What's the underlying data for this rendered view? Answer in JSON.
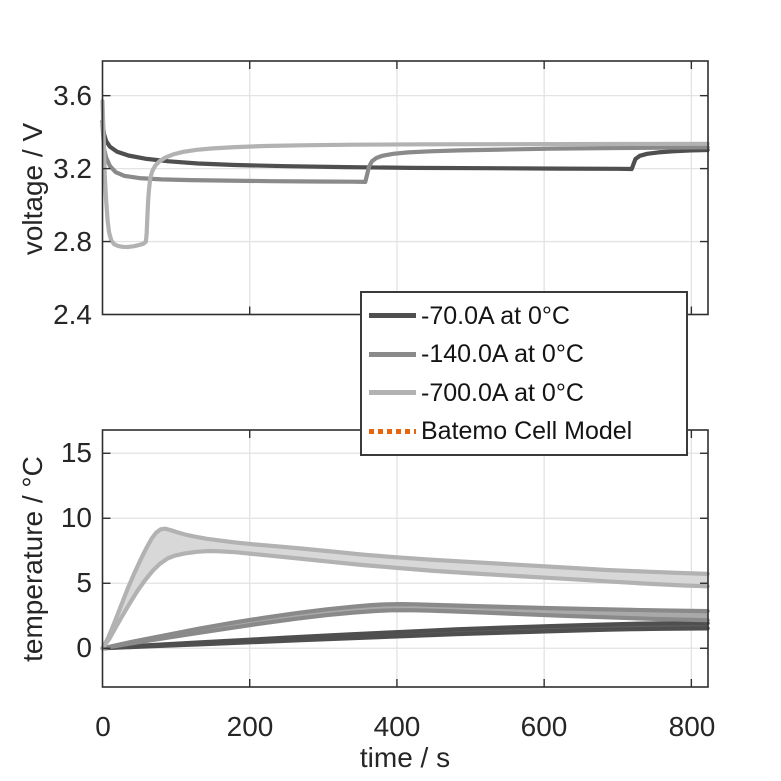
{
  "figure": {
    "background": "#ffffff"
  },
  "colors": {
    "dark": "#4f4f4f",
    "medium": "#8a8a8a",
    "light": "#b2b2b2",
    "dark_fill": "#5f5f5f",
    "medium_fill": "#a9a9a9",
    "light_fill": "#d8d8d8",
    "orange": "#e8650f",
    "grid": "#e3e3e3",
    "axis": "#2f2f2f"
  },
  "legend": {
    "items": [
      {
        "label": "-70.0A at 0°C",
        "swatch": "solid-dark"
      },
      {
        "label": "-140.0A at 0°C",
        "swatch": "solid-medium"
      },
      {
        "label": "-700.0A at 0°C",
        "swatch": "solid-light"
      },
      {
        "label": "Batemo Cell Model",
        "swatch": "dotted-orange"
      }
    ]
  },
  "chart_data": [
    {
      "type": "line",
      "title": "",
      "xlabel": "",
      "ylabel": "voltage / V",
      "xlim": [
        0,
        822.6
      ],
      "ylim": [
        2.4,
        3.79
      ],
      "grid": true,
      "yticks": [
        2.4,
        2.8,
        3.2,
        3.6
      ],
      "yticklabels": [
        "2.4",
        "2.8",
        "3.2",
        "3.6"
      ],
      "xticks": [
        0,
        200,
        400,
        600,
        800
      ],
      "xticklabels": [],
      "series": [
        {
          "name": "-70.0A at 0°C",
          "color_key": "dark",
          "points": [
            [
              0,
              3.46
            ],
            [
              2,
              3.39
            ],
            [
              5,
              3.35
            ],
            [
              10,
              3.32
            ],
            [
              20,
              3.292
            ],
            [
              35,
              3.272
            ],
            [
              60,
              3.253
            ],
            [
              90,
              3.24
            ],
            [
              130,
              3.228
            ],
            [
              180,
              3.22
            ],
            [
              250,
              3.213
            ],
            [
              330,
              3.208
            ],
            [
              420,
              3.204
            ],
            [
              520,
              3.202
            ],
            [
              620,
              3.2
            ],
            [
              700,
              3.199
            ],
            [
              719,
              3.198
            ],
            [
              721,
              3.22
            ],
            [
              724,
              3.252
            ],
            [
              730,
              3.27
            ],
            [
              740,
              3.281
            ],
            [
              755,
              3.289
            ],
            [
              775,
              3.295
            ],
            [
              800,
              3.3
            ],
            [
              822,
              3.302
            ]
          ]
        },
        {
          "name": "-140.0A at 0°C",
          "color_key": "medium",
          "points": [
            [
              0,
              3.44
            ],
            [
              2,
              3.31
            ],
            [
              5,
              3.26
            ],
            [
              10,
              3.215
            ],
            [
              18,
              3.18
            ],
            [
              30,
              3.16
            ],
            [
              50,
              3.148
            ],
            [
              80,
              3.141
            ],
            [
              120,
              3.137
            ],
            [
              170,
              3.134
            ],
            [
              230,
              3.131
            ],
            [
              290,
              3.129
            ],
            [
              340,
              3.128
            ],
            [
              357,
              3.127
            ],
            [
              359,
              3.16
            ],
            [
              362,
              3.21
            ],
            [
              366,
              3.24
            ],
            [
              372,
              3.258
            ],
            [
              380,
              3.27
            ],
            [
              395,
              3.281
            ],
            [
              415,
              3.289
            ],
            [
              445,
              3.295
            ],
            [
              485,
              3.3
            ],
            [
              540,
              3.304
            ],
            [
              610,
              3.309
            ],
            [
              700,
              3.313
            ],
            [
              822,
              3.317
            ]
          ]
        },
        {
          "name": "-700.0A at 0°C",
          "color_key": "light",
          "points": [
            [
              0,
              3.57
            ],
            [
              1,
              3.45
            ],
            [
              2,
              3.3
            ],
            [
              3,
              3.17
            ],
            [
              5,
              3.02
            ],
            [
              7,
              2.91
            ],
            [
              9,
              2.85
            ],
            [
              12,
              2.805
            ],
            [
              16,
              2.785
            ],
            [
              21,
              2.776
            ],
            [
              27,
              2.771
            ],
            [
              34,
              2.77
            ],
            [
              42,
              2.774
            ],
            [
              50,
              2.781
            ],
            [
              56,
              2.789
            ],
            [
              59,
              2.8
            ],
            [
              60,
              2.85
            ],
            [
              61,
              2.94
            ],
            [
              62,
              3.02
            ],
            [
              63,
              3.08
            ],
            [
              65,
              3.15
            ],
            [
              68,
              3.19
            ],
            [
              72,
              3.218
            ],
            [
              78,
              3.242
            ],
            [
              86,
              3.262
            ],
            [
              96,
              3.278
            ],
            [
              110,
              3.292
            ],
            [
              128,
              3.303
            ],
            [
              150,
              3.311
            ],
            [
              180,
              3.318
            ],
            [
              220,
              3.324
            ],
            [
              270,
              3.328
            ],
            [
              340,
              3.331
            ],
            [
              440,
              3.333
            ],
            [
              560,
              3.334
            ],
            [
              700,
              3.335
            ],
            [
              822,
              3.336
            ]
          ]
        }
      ]
    },
    {
      "type": "line-band",
      "title": "",
      "xlabel": "time / s",
      "ylabel": "temperature / °C",
      "xlim": [
        0,
        822.6
      ],
      "ylim": [
        -2.98,
        16.79
      ],
      "grid": true,
      "yticks": [
        0,
        5,
        10,
        15
      ],
      "yticklabels": [
        "0",
        "5",
        "10",
        "15"
      ],
      "xticks": [
        0,
        200,
        400,
        600,
        800
      ],
      "xticklabels": [
        "0",
        "200",
        "400",
        "600",
        "800"
      ],
      "series": [
        {
          "name": "-70.0A at 0°C",
          "color_key": "dark",
          "fill_key": "dark_fill",
          "upper": [
            [
              0,
              0
            ],
            [
              60,
              0.22
            ],
            [
              130,
              0.44
            ],
            [
              200,
              0.66
            ],
            [
              270,
              0.88
            ],
            [
              340,
              1.08
            ],
            [
              410,
              1.27
            ],
            [
              480,
              1.45
            ],
            [
              550,
              1.6
            ],
            [
              620,
              1.73
            ],
            [
              680,
              1.82
            ],
            [
              720,
              1.88
            ],
            [
              760,
              1.91
            ],
            [
              800,
              1.93
            ],
            [
              822,
              1.93
            ]
          ],
          "lower": [
            [
              0,
              0
            ],
            [
              60,
              0.14
            ],
            [
              130,
              0.3
            ],
            [
              200,
              0.46
            ],
            [
              270,
              0.62
            ],
            [
              340,
              0.78
            ],
            [
              410,
              0.93
            ],
            [
              480,
              1.08
            ],
            [
              550,
              1.21
            ],
            [
              620,
              1.33
            ],
            [
              680,
              1.42
            ],
            [
              720,
              1.47
            ],
            [
              760,
              1.5
            ],
            [
              800,
              1.52
            ],
            [
              822,
              1.53
            ]
          ]
        },
        {
          "name": "-140.0A at 0°C",
          "color_key": "medium",
          "fill_key": "medium_fill",
          "upper": [
            [
              0,
              0
            ],
            [
              40,
              0.5
            ],
            [
              85,
              1.0
            ],
            [
              130,
              1.5
            ],
            [
              175,
              1.95
            ],
            [
              220,
              2.35
            ],
            [
              265,
              2.72
            ],
            [
              305,
              3.0
            ],
            [
              340,
              3.2
            ],
            [
              365,
              3.32
            ],
            [
              385,
              3.38
            ],
            [
              405,
              3.4
            ],
            [
              425,
              3.38
            ],
            [
              455,
              3.33
            ],
            [
              495,
              3.26
            ],
            [
              545,
              3.18
            ],
            [
              600,
              3.1
            ],
            [
              660,
              3.02
            ],
            [
              720,
              2.95
            ],
            [
              775,
              2.9
            ],
            [
              822,
              2.86
            ]
          ],
          "lower": [
            [
              0,
              0
            ],
            [
              40,
              0.38
            ],
            [
              85,
              0.78
            ],
            [
              130,
              1.18
            ],
            [
              175,
              1.57
            ],
            [
              220,
              1.94
            ],
            [
              265,
              2.28
            ],
            [
              305,
              2.55
            ],
            [
              340,
              2.74
            ],
            [
              368,
              2.86
            ],
            [
              392,
              2.92
            ],
            [
              415,
              2.93
            ],
            [
              445,
              2.9
            ],
            [
              480,
              2.83
            ],
            [
              520,
              2.74
            ],
            [
              570,
              2.62
            ],
            [
              625,
              2.5
            ],
            [
              685,
              2.38
            ],
            [
              745,
              2.27
            ],
            [
              790,
              2.2
            ],
            [
              822,
              2.16
            ]
          ]
        },
        {
          "name": "-700.0A at 0°C",
          "color_key": "light",
          "fill_key": "light_fill",
          "upper": [
            [
              0,
              0
            ],
            [
              8,
              0.85
            ],
            [
              16,
              1.95
            ],
            [
              25,
              3.25
            ],
            [
              34,
              4.55
            ],
            [
              43,
              5.75
            ],
            [
              52,
              6.85
            ],
            [
              60,
              7.75
            ],
            [
              67,
              8.45
            ],
            [
              73,
              8.9
            ],
            [
              79,
              9.15
            ],
            [
              85,
              9.2
            ],
            [
              92,
              9.1
            ],
            [
              100,
              8.95
            ],
            [
              112,
              8.75
            ],
            [
              126,
              8.58
            ],
            [
              142,
              8.42
            ],
            [
              160,
              8.28
            ],
            [
              180,
              8.14
            ],
            [
              205,
              8.0
            ],
            [
              235,
              7.85
            ],
            [
              268,
              7.68
            ],
            [
              310,
              7.45
            ],
            [
              355,
              7.2
            ],
            [
              400,
              7.0
            ],
            [
              450,
              6.8
            ],
            [
              505,
              6.62
            ],
            [
              565,
              6.42
            ],
            [
              625,
              6.22
            ],
            [
              685,
              6.02
            ],
            [
              745,
              5.88
            ],
            [
              790,
              5.78
            ],
            [
              822,
              5.72
            ]
          ],
          "lower": [
            [
              0,
              0
            ],
            [
              9,
              0.7
            ],
            [
              18,
              1.6
            ],
            [
              28,
              2.6
            ],
            [
              38,
              3.55
            ],
            [
              48,
              4.45
            ],
            [
              58,
              5.25
            ],
            [
              68,
              5.95
            ],
            [
              78,
              6.5
            ],
            [
              88,
              6.9
            ],
            [
              98,
              7.12
            ],
            [
              112,
              7.3
            ],
            [
              128,
              7.42
            ],
            [
              145,
              7.48
            ],
            [
              162,
              7.45
            ],
            [
              182,
              7.38
            ],
            [
              205,
              7.25
            ],
            [
              235,
              7.08
            ],
            [
              268,
              6.9
            ],
            [
              310,
              6.65
            ],
            [
              355,
              6.4
            ],
            [
              400,
              6.18
            ],
            [
              450,
              5.95
            ],
            [
              505,
              5.75
            ],
            [
              565,
              5.55
            ],
            [
              625,
              5.35
            ],
            [
              685,
              5.15
            ],
            [
              745,
              4.95
            ],
            [
              790,
              4.83
            ],
            [
              822,
              4.77
            ]
          ]
        }
      ]
    }
  ]
}
